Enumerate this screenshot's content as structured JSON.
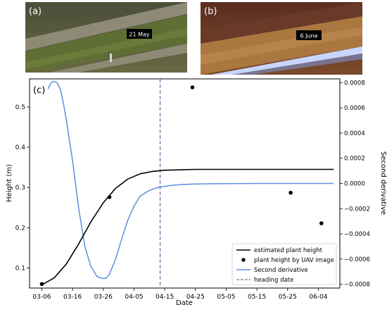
{
  "panels": {
    "a": {
      "tag": "(a)",
      "date_label": "21 May"
    },
    "b": {
      "tag": "(b)",
      "date_label": "6 June"
    }
  },
  "colors": {
    "estimated": "#000000",
    "uav": "#000000",
    "second_derivative": "#5b8fe0",
    "heading": "#3a5f8f",
    "panel_a_crop": "#5e6e34",
    "panel_b_crop": "#a9773f"
  },
  "chart_data": {
    "type": "line",
    "panel_tag": "(c)",
    "xlabel": "Date",
    "ylabel_left": "Height (m)",
    "ylabel_right": "Second derivative",
    "x_ticks": [
      "03-06",
      "03-16",
      "03-26",
      "04-05",
      "04-15",
      "04-25",
      "05-05",
      "05-15",
      "05-25",
      "06-04"
    ],
    "x_tick_days": [
      0,
      10,
      20,
      30,
      40,
      50,
      60,
      70,
      80,
      90
    ],
    "x_day_zero": "03-06",
    "xlim": [
      -4,
      97
    ],
    "y_left_ticks": [
      "0.1",
      "0.2",
      "0.3",
      "0.4",
      "0.5"
    ],
    "y_left_tick_values": [
      0.1,
      0.2,
      0.3,
      0.4,
      0.5
    ],
    "ylim_left": [
      0.05,
      0.57
    ],
    "y_right_ticks": [
      "−0.0008",
      "−0.0006",
      "−0.0004",
      "−0.0002",
      "0.0000",
      "0.0002",
      "0.0004",
      "0.0006",
      "0.0008"
    ],
    "y_right_tick_values": [
      -0.0008,
      -0.0006,
      -0.0004,
      -0.0002,
      0.0,
      0.0002,
      0.0004,
      0.0006,
      0.0008
    ],
    "ylim_right": [
      -0.00083,
      0.00083
    ],
    "legend_position": "lower right",
    "series": [
      {
        "name": "estimated plant height",
        "type": "line",
        "axis": "left",
        "x": [
          0,
          4,
          8,
          12,
          16,
          20,
          24,
          28,
          32,
          36,
          40,
          45,
          50,
          60,
          70,
          80,
          90,
          95
        ],
        "y": [
          0.058,
          0.075,
          0.11,
          0.16,
          0.215,
          0.262,
          0.298,
          0.321,
          0.334,
          0.34,
          0.343,
          0.344,
          0.345,
          0.345,
          0.345,
          0.345,
          0.345,
          0.345
        ]
      },
      {
        "name": "plant height by UAV image",
        "type": "scatter",
        "axis": "left",
        "x": [
          0,
          22,
          49,
          81,
          91
        ],
        "y": [
          0.06,
          0.276,
          0.549,
          0.287,
          0.211
        ]
      },
      {
        "name": "Second derivative",
        "type": "line",
        "axis": "right",
        "x": [
          2,
          3,
          4,
          5,
          6,
          7,
          8,
          10,
          12,
          14,
          16,
          18,
          20,
          21,
          22,
          24,
          26,
          28,
          30,
          32,
          35,
          38,
          42,
          46,
          50,
          55,
          60,
          70,
          80,
          90,
          95
        ],
        "y": [
          0.00075,
          0.0008,
          0.00081,
          0.0008,
          0.00075,
          0.00064,
          0.0005,
          0.00018,
          -0.0002,
          -0.0005,
          -0.00066,
          -0.00074,
          -0.000755,
          -0.00075,
          -0.00072,
          -0.0006,
          -0.00044,
          -0.00029,
          -0.00018,
          -0.0001,
          -5.5e-05,
          -3e-05,
          -1.5e-05,
          -8e-06,
          -4e-06,
          -2e-06,
          -1e-06,
          0.0,
          0.0,
          0.0,
          0.0
        ]
      },
      {
        "name": "heading date",
        "type": "vline",
        "axis": "left",
        "x": 38.5
      }
    ]
  }
}
